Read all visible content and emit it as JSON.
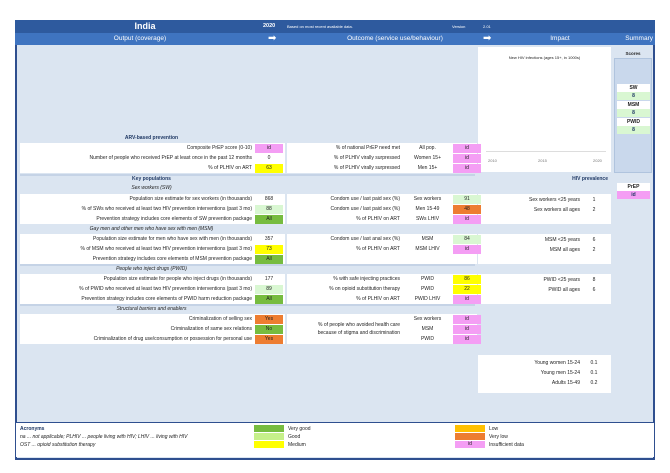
{
  "header": {
    "country": "India",
    "year": "2020",
    "note": "Based on most recent available data.",
    "version_label": "Version",
    "version": "2.01"
  },
  "columns": {
    "output": "Output (coverage)",
    "outcome": "Outcome (service use/behaviour)",
    "impact": "Impact",
    "summary": "Summary",
    "arrow_icon": "right-arrow-icon"
  },
  "colors": {
    "very_good": "#77bc3f",
    "good": "#c6f08a",
    "light_good": "#d9f7d2",
    "medium": "#ffff00",
    "low": "#ffc000",
    "very_low": "#ed7d31",
    "id": "#f49ef4",
    "none": "#ffffff"
  },
  "output": {
    "arv_heading": "ARV-based prevention",
    "arv_rows": [
      {
        "label": "Composite PrEP score (0-10)",
        "value": "id",
        "status": "id"
      },
      {
        "label": "Number of people who received  PrEP at least once in the past 12 months",
        "value": "0",
        "status": "none"
      },
      {
        "label": "% of PLHIV on ART",
        "value": "63",
        "status": "medium"
      }
    ],
    "kp_heading": "Key populations",
    "sw_heading": "Sex workers (SW)",
    "sw_rows": [
      {
        "label": "Population size estimate for sex workers (in thousands)",
        "value": "868",
        "status": "none"
      },
      {
        "label": "% of SWs who received at least two HIV prevention interventions (past 3 mo)",
        "value": "88",
        "status": "light_good"
      },
      {
        "label": "Prevention strategy includes core elements of SW prevention package",
        "value": "All",
        "status": "very_good"
      }
    ],
    "msm_heading": "Gay men and other men who have sex with men (MSM)",
    "msm_rows": [
      {
        "label": "Population size estimate for men who have sex with men (in thousands)",
        "value": "357",
        "status": "none"
      },
      {
        "label": "% of MSM who received at least two HIV prevention interventions (past 3 mo)",
        "value": "73",
        "status": "medium"
      },
      {
        "label": "Prevention strategy includes core elements of MSM prevention package",
        "value": "All",
        "status": "very_good"
      }
    ],
    "pwid_heading": "People who inject drugs (PWID)",
    "pwid_rows": [
      {
        "label": "Population size estimate for people who inject drugs (in thousands)",
        "value": "177",
        "status": "none"
      },
      {
        "label": "% of PWID who received at least two HIV prevention interventions (past 3 mo)",
        "value": "89",
        "status": "light_good"
      },
      {
        "label": "Prevention strategy includes core elements of PWID harm reduction package",
        "value": "All",
        "status": "very_good"
      }
    ],
    "struct_heading": "Structural barriers and enablers",
    "struct_rows": [
      {
        "label": "Criminalization of selling sex",
        "value": "Yes",
        "status": "very_low"
      },
      {
        "label": "Criminalization of same sex relations",
        "value": "No",
        "status": "very_good"
      },
      {
        "label": "Criminalization of drug use/consumption or possession for personal use",
        "value": "Yes",
        "status": "very_low"
      }
    ]
  },
  "outcome": {
    "arv_rows": [
      {
        "label": "% of national PrEP need met",
        "group": "All pop.",
        "value": "id",
        "status": "id"
      },
      {
        "label": "% of PLHIV virally surpressed",
        "group": "Women 15+",
        "value": "id",
        "status": "id"
      },
      {
        "label": "% of PLHIV virally surpressed",
        "group": "Men 15+",
        "value": "id",
        "status": "id"
      }
    ],
    "sw_rows": [
      {
        "label": "Condom use / last paid sex (%)",
        "group": "Sex workers",
        "value": "91",
        "status": "light_good"
      },
      {
        "label": "Condom use / last paid sex (%)",
        "group": "Men 15-49",
        "value": "48",
        "status": "very_low"
      },
      {
        "label": "% of PLHIV on ART",
        "group": "SWs LHIV",
        "value": "id",
        "status": "id"
      }
    ],
    "msm_rows": [
      {
        "label": "Condom use / last anal sex (%)",
        "group": "MSM",
        "value": "84",
        "status": "light_good"
      },
      {
        "label": "% of PLHIV on ART",
        "group": "MSM LHIV",
        "value": "id",
        "status": "id"
      }
    ],
    "pwid_rows": [
      {
        "label": "% with safe injecting practices",
        "group": "PWID",
        "value": "86",
        "status": "medium"
      },
      {
        "label": "% on opioid substitution therapy",
        "group": "PWID",
        "value": "22",
        "status": "medium"
      },
      {
        "label": "% of PLHIV on ART",
        "group": "PWID LHIV",
        "value": "id",
        "status": "id"
      }
    ],
    "stigma_label_1": "% of people who avoided health care",
    "stigma_label_2": "because of stigma and discrimination",
    "stigma_rows": [
      {
        "group": "Sex workers",
        "value": "id",
        "status": "id"
      },
      {
        "group": "MSM",
        "value": "id",
        "status": "id"
      },
      {
        "group": "PWID",
        "value": "id",
        "status": "id"
      }
    ]
  },
  "impact": {
    "chart_title": "New HIV infections (ages 15+, in 1000s)",
    "chart_x_ticks": [
      "2010",
      "2015",
      "2020"
    ],
    "prevalence_heading": "HIV prevalence",
    "sw_rows": [
      {
        "label": "Sex workers <25 years",
        "value": "1"
      },
      {
        "label": "Sex workers all ages",
        "value": "2"
      }
    ],
    "msm_rows": [
      {
        "label": "MSM <25 years",
        "value": "6"
      },
      {
        "label": "MSM all ages",
        "value": "2"
      }
    ],
    "pwid_rows": [
      {
        "label": "PWID <25 years",
        "value": "8"
      },
      {
        "label": "PWID all ages",
        "value": "6"
      }
    ],
    "general_rows": [
      {
        "label": "Young women 15-24",
        "value": "0.1"
      },
      {
        "label": "Young men 15-24",
        "value": "0.1"
      },
      {
        "label": "Adults 15-49",
        "value": "0.2"
      }
    ]
  },
  "summary": {
    "scores_heading": "Scores",
    "scores": [
      {
        "label": "SW",
        "value": "8",
        "status": "light_good"
      },
      {
        "label": "MSM",
        "value": "8",
        "status": "light_good"
      },
      {
        "label": "PWID",
        "value": "8",
        "status": "light_good"
      }
    ],
    "prep": {
      "label": "PrEP",
      "value": "id",
      "status": "id"
    }
  },
  "legend": {
    "acronyms_heading": "Acronyms",
    "acronyms_1": "na ... not applicable; PLHIV ... people living with HIV; LHIV ... living with HIV",
    "acronyms_2": "OST ... opioid substitution therapy",
    "items": [
      {
        "label": "Very good",
        "status": "very_good"
      },
      {
        "label": "Good",
        "status": "good"
      },
      {
        "label": "Medium",
        "status": "medium"
      },
      {
        "label": "Low",
        "status": "low"
      },
      {
        "label": "Very low",
        "status": "very_low"
      },
      {
        "label": "Insufficient data",
        "status": "id",
        "swatch": "id"
      }
    ]
  }
}
